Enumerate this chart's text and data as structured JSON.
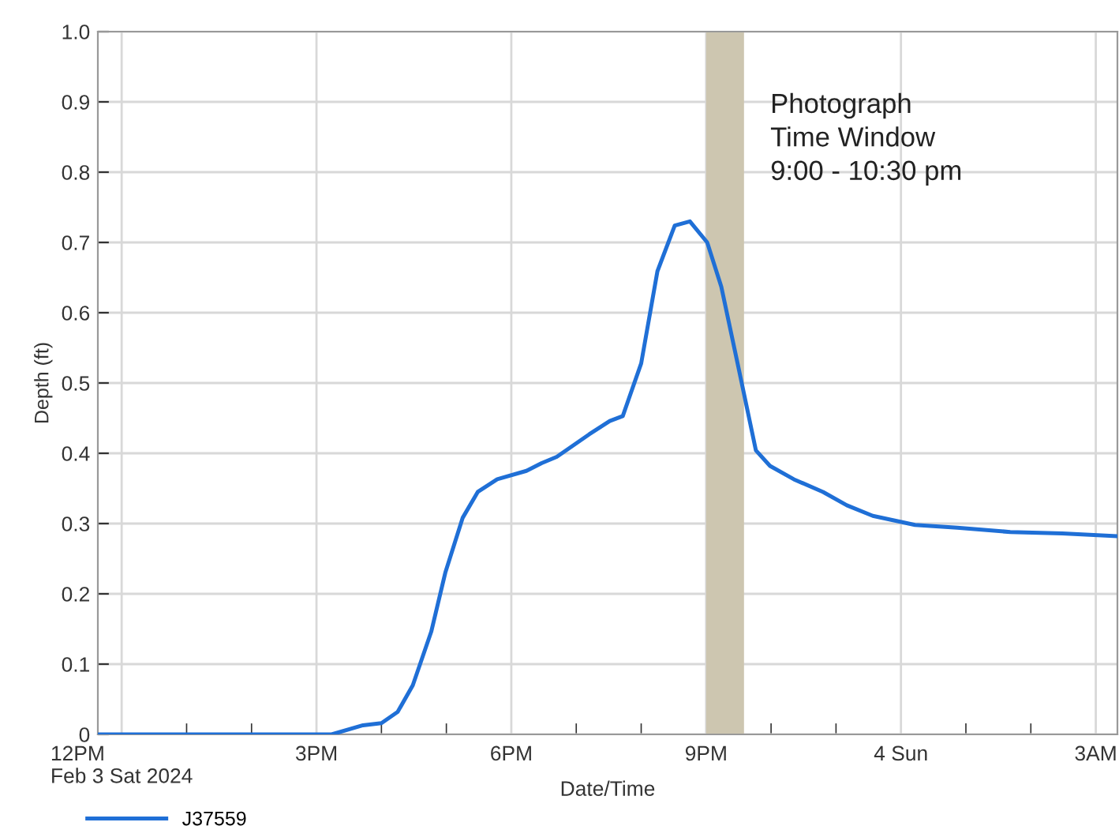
{
  "chart_data": {
    "type": "line",
    "xlabel": "Date/Time",
    "ylabel": "Depth (ft)",
    "xlim": [
      "2024-02-03T11:38",
      "2024-02-04T03:20"
    ],
    "ylim": [
      0,
      1.0
    ],
    "xticks": [
      {
        "value": "2024-02-03T12:00",
        "label": "12PM\nFeb 3 Sat 2024"
      },
      {
        "value": "2024-02-03T13:00",
        "label": null
      },
      {
        "value": "2024-02-03T14:00",
        "label": null
      },
      {
        "value": "2024-02-03T15:00",
        "label": "3PM"
      },
      {
        "value": "2024-02-03T16:00",
        "label": null
      },
      {
        "value": "2024-02-03T17:00",
        "label": null
      },
      {
        "value": "2024-02-03T18:00",
        "label": "6PM"
      },
      {
        "value": "2024-02-03T19:00",
        "label": null
      },
      {
        "value": "2024-02-03T20:00",
        "label": null
      },
      {
        "value": "2024-02-03T21:00",
        "label": "9PM"
      },
      {
        "value": "2024-02-03T22:00",
        "label": null
      },
      {
        "value": "2024-02-03T23:00",
        "label": null
      },
      {
        "value": "2024-02-04T00:00",
        "label": "4 Sun"
      },
      {
        "value": "2024-02-04T01:00",
        "label": null
      },
      {
        "value": "2024-02-04T02:00",
        "label": null
      },
      {
        "value": "2024-02-04T03:00",
        "label": "3AM"
      }
    ],
    "yticks": [
      {
        "value": 0,
        "label": "0"
      },
      0.1,
      0.2,
      0.3,
      0.4,
      0.5,
      0.6,
      0.7,
      0.8,
      0.9,
      {
        "value": 1.0,
        "label": "1.0"
      }
    ],
    "grid": true,
    "legend": "bottom left",
    "line_style": "solid",
    "marker": "none",
    "bands": [
      {
        "axis": "x",
        "from": "2024-02-03T21:00",
        "to": "2024-02-03T21:35",
        "label": "Photograph\nTime Window\n9:00 - 10:30 pm",
        "color": "#cdc6b0"
      }
    ],
    "series": [
      {
        "name": "J37559",
        "color": "#1f6fd6",
        "x": [
          "2024-02-03T11:38",
          "2024-02-03T13:02",
          "2024-02-03T15:14",
          "2024-02-03T15:43",
          "2024-02-03T16:00",
          "2024-02-03T16:15",
          "2024-02-03T16:29",
          "2024-02-03T16:46",
          "2024-02-03T16:59",
          "2024-02-03T17:15",
          "2024-02-03T17:29",
          "2024-02-03T17:47",
          "2024-02-03T18:14",
          "2024-02-03T18:28",
          "2024-02-03T18:42",
          "2024-02-03T19:12",
          "2024-02-03T19:31",
          "2024-02-03T19:43",
          "2024-02-03T20:00",
          "2024-02-03T20:15",
          "2024-02-03T20:31",
          "2024-02-03T20:45",
          "2024-02-03T21:01",
          "2024-02-03T21:14",
          "2024-02-03T21:30",
          "2024-02-03T21:46",
          "2024-02-03T21:59",
          "2024-02-03T22:21",
          "2024-02-03T22:48",
          "2024-02-03T23:10",
          "2024-02-03T23:34",
          "2024-02-04T00:13",
          "2024-02-04T00:52",
          "2024-02-04T01:41",
          "2024-02-04T02:29",
          "2024-02-04T03:20"
        ],
        "values": [
          0,
          0,
          0,
          0.013,
          0.016,
          0.032,
          0.07,
          0.146,
          0.23,
          0.308,
          0.345,
          0.363,
          0.375,
          0.386,
          0.395,
          0.427,
          0.446,
          0.453,
          0.528,
          0.659,
          0.724,
          0.73,
          0.7,
          0.637,
          0.521,
          0.404,
          0.382,
          0.363,
          0.345,
          0.326,
          0.311,
          0.298,
          0.294,
          0.288,
          0.286,
          0.282
        ]
      }
    ]
  }
}
